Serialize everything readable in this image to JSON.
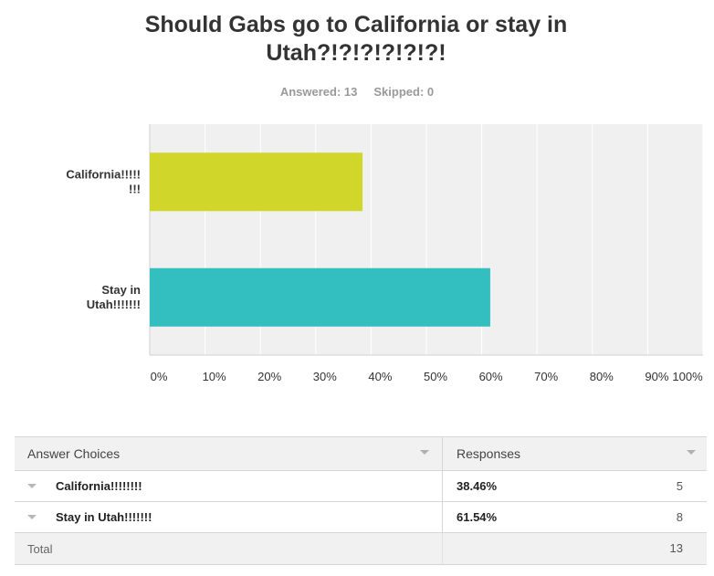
{
  "survey": {
    "title_line1": "Should Gabs go to California or stay in",
    "title_line2": "Utah?!?!?!?!?!?!",
    "answered_label": "Answered: 13",
    "skipped_label": "Skipped: 0"
  },
  "colors": {
    "california": "#d0d62a",
    "utah": "#33bebf",
    "plot_bg": "#f0f0f0",
    "grid": "#ffffff"
  },
  "chart_data": {
    "type": "bar",
    "orientation": "horizontal",
    "categories": [
      [
        "California!!!!!",
        "!!!"
      ],
      [
        "Stay in",
        "Utah!!!!!!!"
      ]
    ],
    "values": [
      38.46,
      61.54
    ],
    "xlim": [
      0,
      100
    ],
    "xticks": [
      "0%",
      "10%",
      "20%",
      "30%",
      "40%",
      "50%",
      "60%",
      "70%",
      "80%",
      "90%",
      "100%"
    ],
    "grid": true,
    "title": "",
    "xlabel": "",
    "ylabel": ""
  },
  "table": {
    "header_choices": "Answer Choices",
    "header_responses": "Responses",
    "rows": [
      {
        "choice": "California!!!!!!!!",
        "percent": "38.46%",
        "count": "5"
      },
      {
        "choice": "Stay in Utah!!!!!!!",
        "percent": "61.54%",
        "count": "8"
      }
    ],
    "total_label": "Total",
    "total_count": "13"
  }
}
